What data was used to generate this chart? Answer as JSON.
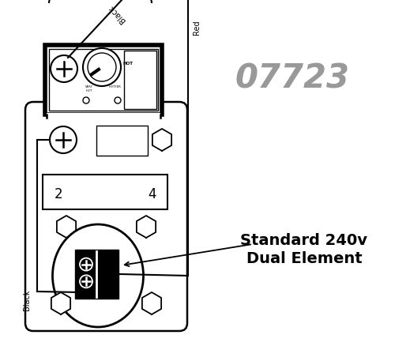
{
  "bg_color": "#ffffff",
  "line_color": "#000000",
  "gray_text_color": "#999999",
  "part_number": "07723",
  "label_standard": "Standard 240v",
  "label_dual": "Dual Element",
  "wire_black1_label": "Black",
  "wire_black2_label": "Black",
  "wire_red_label": "Red",
  "terminal_2": "2",
  "terminal_4": "4",
  "figw": 5.0,
  "figh": 4.39,
  "dpi": 100
}
